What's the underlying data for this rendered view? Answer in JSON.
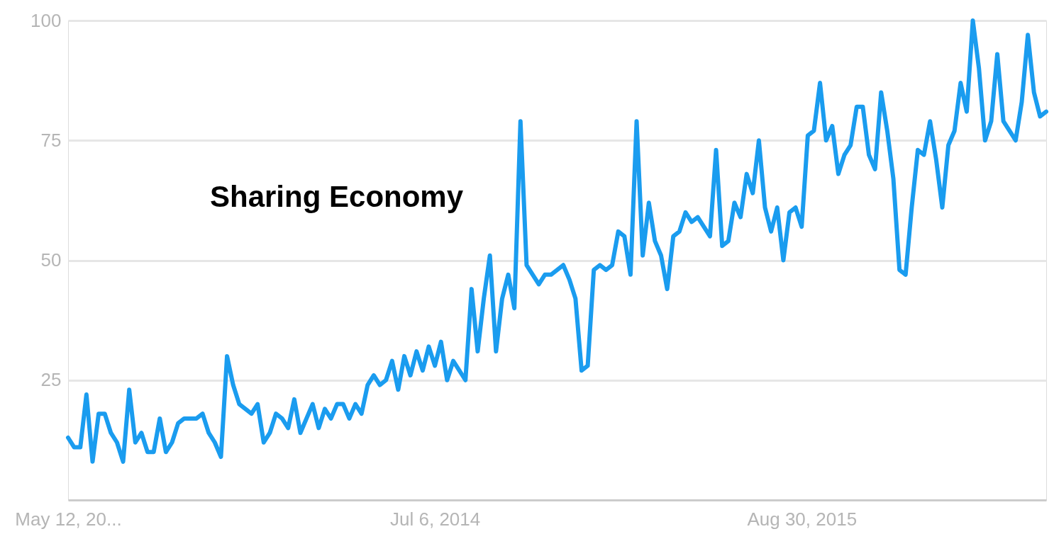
{
  "chart_data": {
    "type": "line",
    "annotations": [
      "Sharing Economy"
    ],
    "x": [
      "2013-05-12",
      "2013-05-19",
      "2013-05-26",
      "2013-06-02",
      "2013-06-09",
      "2013-06-16",
      "2013-06-23",
      "2013-06-30",
      "2013-07-07",
      "2013-07-14",
      "2013-07-21",
      "2013-07-28",
      "2013-08-04",
      "2013-08-11",
      "2013-08-18",
      "2013-08-25",
      "2013-09-01",
      "2013-09-08",
      "2013-09-15",
      "2013-09-22",
      "2013-09-29",
      "2013-10-06",
      "2013-10-13",
      "2013-10-20",
      "2013-10-27",
      "2013-11-03",
      "2013-11-10",
      "2013-11-17",
      "2013-11-24",
      "2013-12-01",
      "2013-12-08",
      "2013-12-15",
      "2013-12-22",
      "2013-12-29",
      "2014-01-05",
      "2014-01-12",
      "2014-01-19",
      "2014-01-26",
      "2014-02-02",
      "2014-02-09",
      "2014-02-16",
      "2014-02-23",
      "2014-03-02",
      "2014-03-09",
      "2014-03-16",
      "2014-03-23",
      "2014-03-30",
      "2014-04-06",
      "2014-04-13",
      "2014-04-20",
      "2014-04-27",
      "2014-05-04",
      "2014-05-11",
      "2014-05-18",
      "2014-05-25",
      "2014-06-01",
      "2014-06-08",
      "2014-06-15",
      "2014-06-22",
      "2014-06-29",
      "2014-07-06",
      "2014-07-13",
      "2014-07-20",
      "2014-07-27",
      "2014-08-03",
      "2014-08-10",
      "2014-08-17",
      "2014-08-24",
      "2014-08-31",
      "2014-09-07",
      "2014-09-14",
      "2014-09-21",
      "2014-09-28",
      "2014-10-05",
      "2014-10-12",
      "2014-10-19",
      "2014-10-26",
      "2014-11-02",
      "2014-11-09",
      "2014-11-16",
      "2014-11-23",
      "2014-11-30",
      "2014-12-07",
      "2014-12-14",
      "2014-12-21",
      "2014-12-28",
      "2015-01-04",
      "2015-01-11",
      "2015-01-18",
      "2015-01-25",
      "2015-02-01",
      "2015-02-08",
      "2015-02-15",
      "2015-02-22",
      "2015-03-01",
      "2015-03-08",
      "2015-03-15",
      "2015-03-22",
      "2015-03-29",
      "2015-04-05",
      "2015-04-12",
      "2015-04-19",
      "2015-04-26",
      "2015-05-03",
      "2015-05-10",
      "2015-05-17",
      "2015-05-24",
      "2015-05-31",
      "2015-06-07",
      "2015-06-14",
      "2015-06-21",
      "2015-06-28",
      "2015-07-05",
      "2015-07-12",
      "2015-07-19",
      "2015-07-26",
      "2015-08-02",
      "2015-08-09",
      "2015-08-16",
      "2015-08-23",
      "2015-08-30",
      "2015-09-06",
      "2015-09-13",
      "2015-09-20",
      "2015-09-27",
      "2015-10-04",
      "2015-10-11",
      "2015-10-18",
      "2015-10-25",
      "2015-11-01",
      "2015-11-08",
      "2015-11-15",
      "2015-11-22",
      "2015-11-29",
      "2015-12-06",
      "2015-12-13",
      "2015-12-20",
      "2015-12-27",
      "2016-01-03",
      "2016-01-10",
      "2016-01-17",
      "2016-01-24",
      "2016-01-31",
      "2016-02-07",
      "2016-02-14",
      "2016-02-21",
      "2016-02-28",
      "2016-03-06",
      "2016-03-13",
      "2016-03-20",
      "2016-03-27",
      "2016-04-03",
      "2016-04-10",
      "2016-04-17",
      "2016-04-24",
      "2016-05-01",
      "2016-05-08",
      "2016-05-15",
      "2016-05-22",
      "2016-05-29",
      "2016-06-05"
    ],
    "series": [
      {
        "color": "#1a9cef",
        "values": [
          13,
          11,
          11,
          22,
          8,
          18,
          18,
          14,
          12,
          8,
          23,
          12,
          14,
          10,
          10,
          17,
          10,
          12,
          16,
          17,
          17,
          17,
          18,
          14,
          12,
          9,
          30,
          24,
          20,
          19,
          18,
          20,
          12,
          14,
          18,
          17,
          15,
          21,
          14,
          17,
          20,
          15,
          19,
          17,
          20,
          20,
          17,
          20,
          18,
          24,
          26,
          24,
          25,
          29,
          23,
          30,
          26,
          31,
          27,
          32,
          28,
          33,
          25,
          29,
          27,
          25,
          44,
          31,
          42,
          51,
          31,
          42,
          47,
          40,
          79,
          49,
          47,
          45,
          47,
          47,
          48,
          49,
          46,
          42,
          27,
          28,
          48,
          49,
          48,
          49,
          56,
          55,
          47,
          79,
          51,
          62,
          54,
          51,
          44,
          55,
          56,
          60,
          58,
          59,
          57,
          55,
          73,
          53,
          54,
          62,
          59,
          68,
          64,
          75,
          61,
          56,
          61,
          50,
          60,
          61,
          57,
          76,
          77,
          87,
          75,
          78,
          68,
          72,
          74,
          82,
          82,
          72,
          69,
          85,
          77,
          67,
          48,
          47,
          61,
          73,
          72,
          79,
          71,
          61,
          74,
          77,
          87,
          81,
          100,
          90,
          75,
          79,
          93,
          79,
          77,
          75,
          83,
          97,
          85,
          80,
          81
        ]
      }
    ],
    "xlim": [
      "2013-05-12",
      "2016-06-05"
    ],
    "xticks": [
      {
        "value": "2013-05-12",
        "label": "May 12, 20..."
      },
      {
        "value": "2014-07-06",
        "label": "Jul 6, 2014"
      },
      {
        "value": "2015-08-30",
        "label": "Aug 30, 2015"
      }
    ],
    "ylim": [
      0,
      100
    ],
    "yticks": [
      25,
      50,
      75,
      100
    ],
    "grid": "y",
    "marker": "none",
    "line_style": "solid"
  }
}
